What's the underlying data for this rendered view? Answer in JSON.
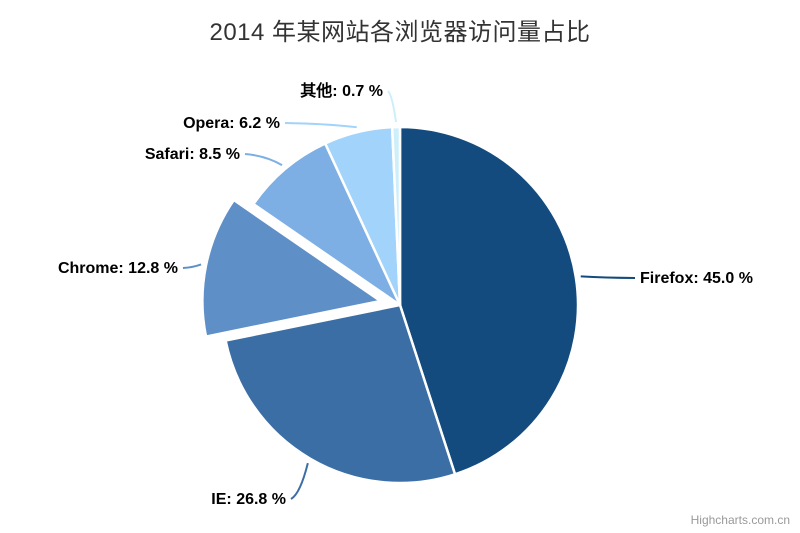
{
  "chart_data": {
    "type": "pie",
    "title": "2014 年某网站各浏览器访问量占比",
    "unit": "%",
    "legend": false,
    "background_color": "#ffffff",
    "slice_border_color": "#ffffff",
    "start_angle": 0,
    "slices": [
      {
        "key": "firefox",
        "name": "Firefox",
        "value": 45.0,
        "label": "Firefox: 45.0 %",
        "color": "#144B7E",
        "sliced": false
      },
      {
        "key": "ie",
        "name": "IE",
        "value": 26.8,
        "label": "IE: 26.8 %",
        "color": "#3A6EA5",
        "sliced": false
      },
      {
        "key": "chrome",
        "name": "Chrome",
        "value": 12.8,
        "label": "Chrome: 12.8 %",
        "color": "#5E90C7",
        "sliced": true
      },
      {
        "key": "safari",
        "name": "Safari",
        "value": 8.5,
        "label": "Safari: 8.5 %",
        "color": "#7DAFE4",
        "sliced": false
      },
      {
        "key": "opera",
        "name": "Opera",
        "value": 6.2,
        "label": "Opera: 6.2 %",
        "color": "#A2D3FA",
        "sliced": false
      },
      {
        "key": "others",
        "name": "其他",
        "value": 0.7,
        "label": "其他: 0.7 %",
        "color": "#CDEFFA",
        "sliced": false
      }
    ]
  },
  "credits": {
    "label": "Highcharts.com.cn"
  }
}
